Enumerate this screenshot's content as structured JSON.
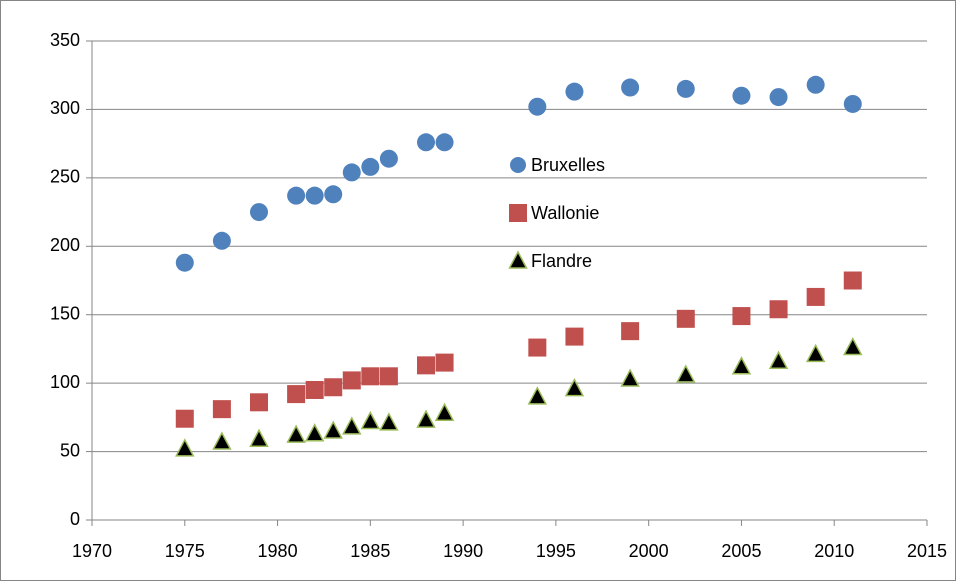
{
  "chart_data": {
    "type": "scatter",
    "x": [
      1975,
      1977,
      1979,
      1981,
      1982,
      1983,
      1984,
      1985,
      1986,
      1988,
      1989,
      1994,
      1996,
      1999,
      2002,
      2005,
      2007,
      2009,
      2011
    ],
    "series": [
      {
        "name": "Bruxelles",
        "color": "#4f81bd",
        "marker": "circle",
        "values": [
          188,
          204,
          225,
          237,
          237,
          238,
          254,
          258,
          264,
          276,
          276,
          302,
          313,
          316,
          315,
          310,
          309,
          318,
          304
        ]
      },
      {
        "name": "Wallonie",
        "color": "#c0504d",
        "marker": "square",
        "values": [
          74,
          81,
          86,
          92,
          95,
          97,
          102,
          105,
          105,
          113,
          115,
          126,
          134,
          138,
          147,
          149,
          154,
          163,
          175
        ]
      },
      {
        "name": "Flandre",
        "color": "#000000",
        "marker": "triangle",
        "values": [
          52,
          57,
          59,
          62,
          63,
          65,
          68,
          72,
          71,
          73,
          78,
          90,
          96,
          103,
          106,
          112,
          116,
          121,
          126
        ]
      }
    ],
    "xlim": [
      1970,
      2015
    ],
    "xticks": [
      1970,
      1975,
      1980,
      1985,
      1990,
      1995,
      2000,
      2005,
      2010,
      2015
    ],
    "ylim": [
      0,
      350
    ],
    "yticks": [
      0,
      50,
      100,
      150,
      200,
      250,
      300,
      350
    ],
    "grid": true,
    "legend": "center"
  }
}
